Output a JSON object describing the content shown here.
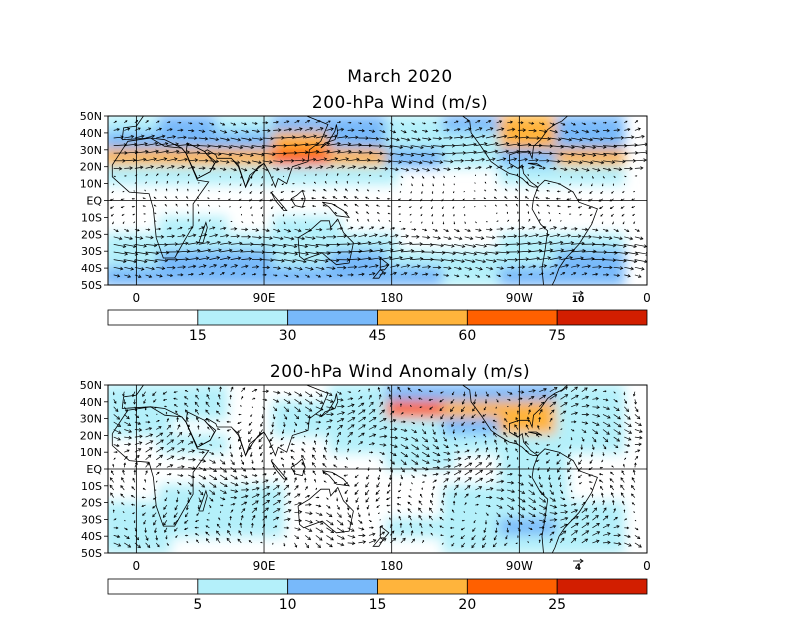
{
  "main_title": "March 2020",
  "panels": [
    {
      "id": "wind",
      "title": "200-hPa Wind (m/s)",
      "lat_labels": [
        "50N",
        "40N",
        "30N",
        "20N",
        "10N",
        "EQ",
        "10S",
        "20S",
        "30S",
        "40S",
        "50S"
      ],
      "lon_labels": [
        "0",
        "90E",
        "180",
        "90W",
        "0"
      ],
      "ref_vector": "10",
      "colorbar": {
        "colors": [
          "#ffffff",
          "#b4f0fa",
          "#78b9fa",
          "#ffb43c",
          "#ff6000",
          "#d21e00"
        ],
        "ticks": [
          "15",
          "30",
          "45",
          "60",
          "75"
        ]
      },
      "shading": {
        "lat_values": [
          45,
          35,
          25,
          15,
          5,
          -5,
          -15,
          -25,
          -35,
          -45
        ],
        "lon_centers": [
          0,
          40,
          80,
          120,
          160,
          200,
          240,
          280,
          320
        ],
        "levels": [
          [
            1,
            2,
            1,
            2,
            2,
            1,
            2,
            3,
            2
          ],
          [
            2,
            2,
            2,
            3,
            2,
            1,
            1,
            3,
            2
          ],
          [
            3,
            3,
            3,
            4,
            3,
            2,
            1,
            2,
            3
          ],
          [
            1,
            1,
            1,
            1,
            1,
            0,
            0,
            1,
            1
          ],
          [
            0,
            0,
            0,
            0,
            0,
            0,
            0,
            0,
            0
          ],
          [
            0,
            0,
            0,
            0,
            0,
            0,
            0,
            0,
            0
          ],
          [
            0,
            1,
            0,
            1,
            0,
            0,
            0,
            0,
            0
          ],
          [
            1,
            1,
            1,
            1,
            1,
            0,
            0,
            1,
            1
          ],
          [
            1,
            2,
            2,
            1,
            2,
            1,
            1,
            1,
            2
          ],
          [
            2,
            2,
            2,
            2,
            2,
            2,
            1,
            2,
            2
          ]
        ]
      }
    },
    {
      "id": "anomaly",
      "title": "200-hPa Wind Anomaly (m/s)",
      "lat_labels": [
        "50N",
        "40N",
        "30N",
        "20N",
        "10N",
        "EQ",
        "10S",
        "20S",
        "30S",
        "40S",
        "50S"
      ],
      "lon_labels": [
        "0",
        "90E",
        "180",
        "90W",
        "0"
      ],
      "ref_vector": "4",
      "colorbar": {
        "colors": [
          "#ffffff",
          "#b4f0fa",
          "#78b9fa",
          "#ffb43c",
          "#ff6000",
          "#d21e00"
        ],
        "ticks": [
          "5",
          "10",
          "15",
          "20",
          "25"
        ]
      },
      "shading": {
        "lat_values": [
          45,
          35,
          25,
          15,
          5,
          -5,
          -15,
          -25,
          -35,
          -45
        ],
        "lon_centers": [
          0,
          40,
          80,
          120,
          160,
          200,
          240,
          280,
          320
        ],
        "levels": [
          [
            1,
            1,
            0,
            0,
            1,
            2,
            2,
            2,
            1
          ],
          [
            1,
            1,
            0,
            1,
            1,
            4,
            3,
            3,
            1
          ],
          [
            1,
            0,
            0,
            1,
            1,
            1,
            2,
            3,
            1
          ],
          [
            0,
            1,
            0,
            0,
            1,
            1,
            1,
            1,
            1
          ],
          [
            0,
            0,
            0,
            0,
            0,
            1,
            0,
            1,
            0
          ],
          [
            0,
            0,
            0,
            0,
            0,
            0,
            0,
            1,
            0
          ],
          [
            0,
            1,
            1,
            0,
            0,
            0,
            1,
            1,
            0
          ],
          [
            1,
            1,
            1,
            0,
            0,
            0,
            1,
            1,
            1
          ],
          [
            1,
            1,
            1,
            0,
            0,
            1,
            1,
            2,
            1
          ],
          [
            1,
            0,
            0,
            0,
            0,
            0,
            1,
            1,
            1
          ]
        ]
      }
    }
  ]
}
